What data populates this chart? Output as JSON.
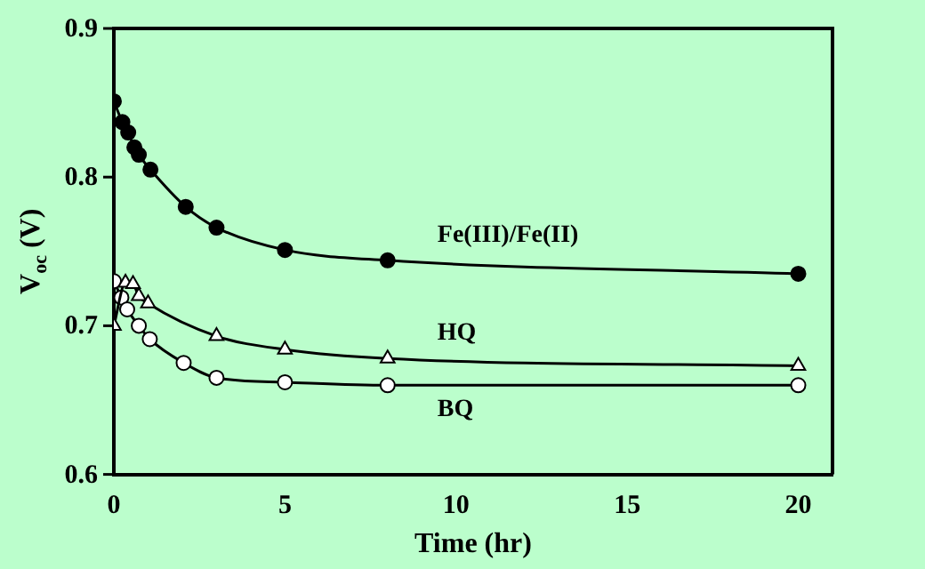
{
  "chart_data": {
    "type": "line",
    "xlabel": "Time (hr)",
    "ylabel": "V$_{oc}$ (V)",
    "xlim": [
      0,
      21
    ],
    "xticks": [
      0,
      5,
      10,
      15,
      20
    ],
    "ylim": [
      0.6,
      0.9
    ],
    "yticks": [
      0.6,
      0.7,
      0.8,
      0.9
    ],
    "grid": false,
    "legend": false,
    "line_style": "solid",
    "series": [
      {
        "name": "Fe(III)/Fe(II)",
        "color": "#000000",
        "marker": "circle",
        "x": [
          0,
          0.25,
          0.42,
          0.6,
          0.73,
          1.07,
          2.1,
          3,
          5,
          8,
          20
        ],
        "values": [
          0.851,
          0.837,
          0.83,
          0.82,
          0.815,
          0.805,
          0.78,
          0.766,
          0.751,
          0.744,
          0.735
        ]
      },
      {
        "name": "HQ",
        "color": "#000000",
        "marker": "triangle",
        "x": [
          0,
          0.34,
          0.56,
          0.73,
          1,
          3,
          5,
          8,
          20
        ],
        "values": [
          0.7,
          0.729,
          0.728,
          0.72,
          0.715,
          0.693,
          0.684,
          0.678,
          0.673
        ]
      },
      {
        "name": "BQ",
        "color": "#000000",
        "marker": "circle",
        "x": [
          0,
          0.22,
          0.39,
          0.73,
          1.05,
          2.04,
          3,
          5,
          8,
          20
        ],
        "values": [
          0.73,
          0.719,
          0.711,
          0.7,
          0.691,
          0.675,
          0.665,
          0.662,
          0.66,
          0.66
        ]
      }
    ]
  }
}
